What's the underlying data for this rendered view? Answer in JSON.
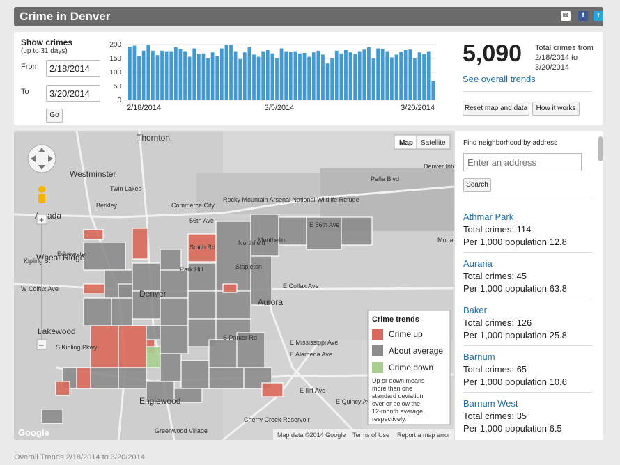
{
  "header": {
    "title": "Crime in Denver"
  },
  "controls": {
    "show_label": "Show crimes",
    "limit_note": "(up to 31 days)",
    "from_label": "From",
    "from_value": "2/18/2014",
    "to_label": "To",
    "to_value": "3/20/2014",
    "go_label": "Go"
  },
  "daily_chart": {
    "y_ticks": [
      "200",
      "150",
      "100",
      "50",
      "0"
    ],
    "x_labels": [
      "2/18/2014",
      "3/5/2014",
      "3/20/2014"
    ]
  },
  "chart_data": {
    "type": "bar",
    "ylim": [
      0,
      200
    ],
    "xlabel": "",
    "ylabel": "",
    "values": [
      192,
      196,
      160,
      178,
      200,
      178,
      162,
      178,
      176,
      176,
      190,
      184,
      176,
      156,
      186,
      166,
      168,
      150,
      172,
      158,
      186,
      200,
      200,
      176,
      148,
      172,
      190,
      164,
      156,
      176,
      180,
      168,
      150,
      186,
      176,
      174,
      176,
      168,
      170,
      156,
      172,
      178,
      164,
      132,
      150,
      178,
      168,
      180,
      172,
      166,
      176,
      182,
      190,
      150,
      186,
      184,
      176,
      154,
      164,
      174,
      180,
      182,
      150,
      172,
      166,
      176,
      68
    ]
  },
  "summary": {
    "total": "5,090",
    "total_label": "Total crimes from 2/18/2014 to 3/20/2014",
    "trends_link": "See overall trends",
    "reset_label": "Reset map and data",
    "how_label": "How it works"
  },
  "map": {
    "type_map": "Map",
    "type_satellite": "Satellite",
    "places": [
      "Thornton",
      "Westminster",
      "Twin Lakes",
      "Berkley",
      "Commerce City",
      "Arvada",
      "Rocky Mountain Arsenal National Wildlife Refuge",
      "Wheat Ridge",
      "Edgewater",
      "Northfield",
      "Montbello",
      "Stapleton",
      "Park Hill",
      "Denver",
      "Aurora",
      "Lakewood",
      "Englewood",
      "Cherry Creek Reservoir",
      "Greenwood Village",
      "Denver International Airport",
      "Peña Blvd",
      "E Colfax Ave",
      "W Colfax Ave",
      "E Alameda Ave",
      "E Mississippi Ave",
      "E Iliff Ave",
      "S Parker Rd",
      "Smith Rd",
      "56th Ave",
      "E 56th Ave",
      "E Quincy Ave",
      "Kipling St",
      "S Kipling Pkwy",
      "Mohawk St"
    ],
    "legend": {
      "title": "Crime trends",
      "items": [
        {
          "label": "Crime up",
          "color": "#d9695a"
        },
        {
          "label": "About average",
          "color": "#8c8c8c"
        },
        {
          "label": "Crime down",
          "color": "#a8cf8f"
        }
      ],
      "note": "Up or down means more than one standard deviation over or below the 12-month average, respectively."
    },
    "attribution": "Map data ©2014 Google",
    "terms": "Terms of Use",
    "report": "Report a map error",
    "google": "Google"
  },
  "sidebar": {
    "find_label": "Find neighborhood by address",
    "address_placeholder": "Enter an address",
    "search_label": "Search",
    "neighborhoods": [
      {
        "name": "Athmar Park",
        "total": "Total crimes: 114",
        "per": "Per 1,000 population 12.8"
      },
      {
        "name": "Auraria",
        "total": "Total crimes: 45",
        "per": "Per 1,000 population 63.8"
      },
      {
        "name": "Baker",
        "total": "Total crimes: 126",
        "per": "Per 1,000 population 25.8"
      },
      {
        "name": "Barnum",
        "total": "Total crimes: 65",
        "per": "Per 1,000 population 10.6"
      },
      {
        "name": "Barnum West",
        "total": "Total crimes: 35",
        "per": "Per 1,000 population 6.5"
      }
    ]
  },
  "footer": {
    "text": "Overall Trends 2/18/2014 to 3/20/2014"
  },
  "colors": {
    "up": "#d9695a",
    "average": "#8c8c8c",
    "down": "#a8cf8f",
    "bar": "#3d9ad8",
    "link": "#1a6fb5"
  }
}
